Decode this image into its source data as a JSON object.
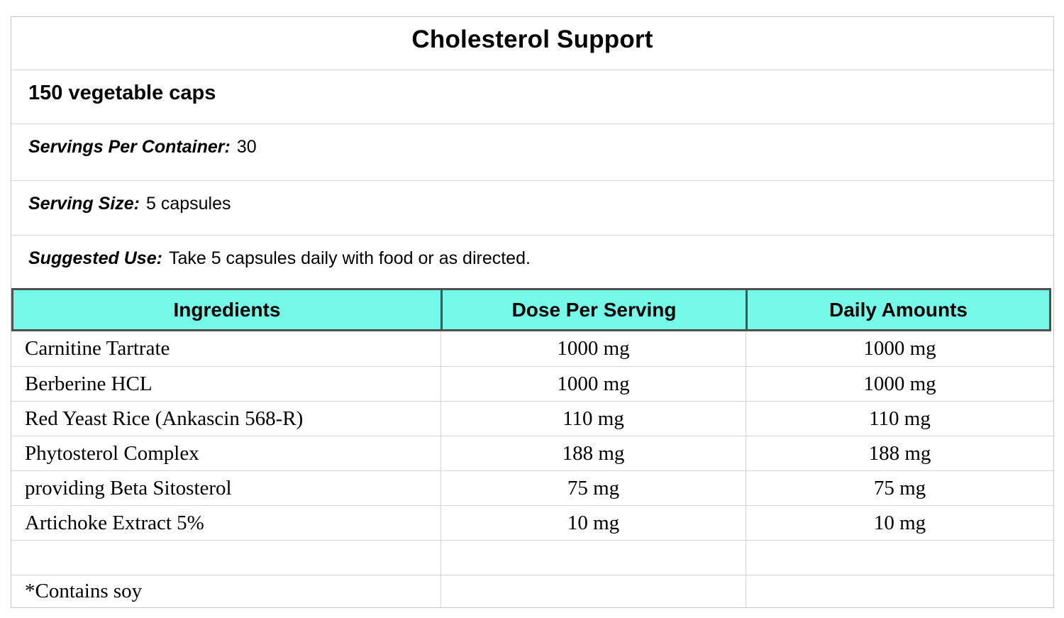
{
  "title": "Cholesterol Support",
  "subtitle": "150 vegetable caps",
  "info_rows": [
    {
      "label": "Servings Per Container:",
      "value": "30"
    },
    {
      "label": "Serving Size:",
      "value": "5 capsules"
    },
    {
      "label": "Suggested Use:",
      "value": "Take 5 capsules daily with food or as directed."
    }
  ],
  "table": {
    "columns": [
      "Ingredients",
      "Dose Per Serving",
      "Daily Amounts"
    ],
    "rows": [
      {
        "ingredient": "Carnitine Tartrate",
        "dose": "1000 mg",
        "daily": "1000 mg"
      },
      {
        "ingredient": "Berberine HCL",
        "dose": "1000 mg",
        "daily": "1000 mg"
      },
      {
        "ingredient": "Red Yeast Rice (Ankascin 568-R)",
        "dose": "110 mg",
        "daily": "110 mg"
      },
      {
        "ingredient": "Phytosterol Complex",
        "dose": "188 mg",
        "daily": "188 mg"
      },
      {
        "ingredient": "providing Beta Sitosterol",
        "dose": "75 mg",
        "daily": "75 mg"
      },
      {
        "ingredient": "Artichoke Extract 5%",
        "dose": "10 mg",
        "daily": "10 mg"
      },
      {
        "ingredient": "",
        "dose": "",
        "daily": ""
      },
      {
        "ingredient": "*Contains soy",
        "dose": "",
        "daily": ""
      }
    ]
  },
  "colors": {
    "header_bg": "#74f9e9",
    "header_border": "#4f4f4f",
    "grid_line": "#d4d4d4",
    "outer_border": "#c6c6c6"
  }
}
